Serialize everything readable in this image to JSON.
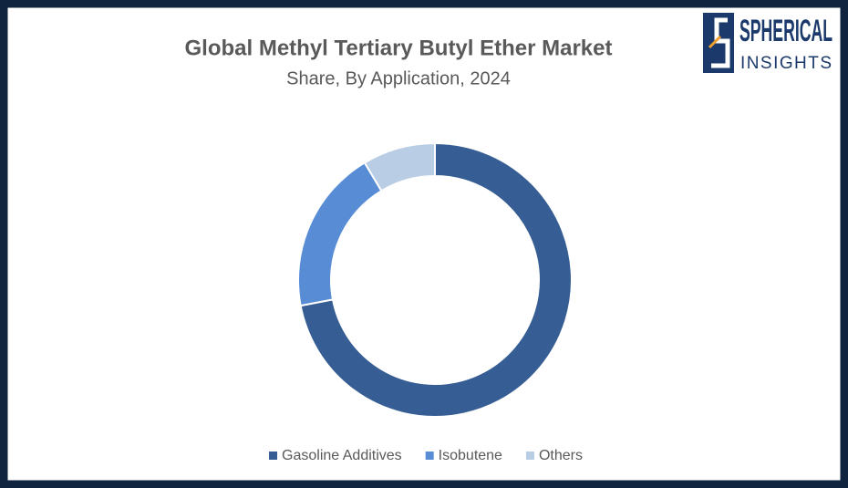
{
  "chart_data": {
    "type": "donut",
    "title": "Global Methyl Tertiary Butyl Ether Market",
    "subtitle": "Share, By Application, 2024",
    "categories": [
      "Gasoline Additives",
      "Isobutene",
      "Others"
    ],
    "values": [
      72,
      19.4,
      8.6
    ],
    "colors": [
      "#365e94",
      "#588dd5",
      "#b9cde5"
    ],
    "legend": "bottom"
  },
  "logo": {
    "line1": "SPHERICAL",
    "line2": "INSIGHTS"
  }
}
